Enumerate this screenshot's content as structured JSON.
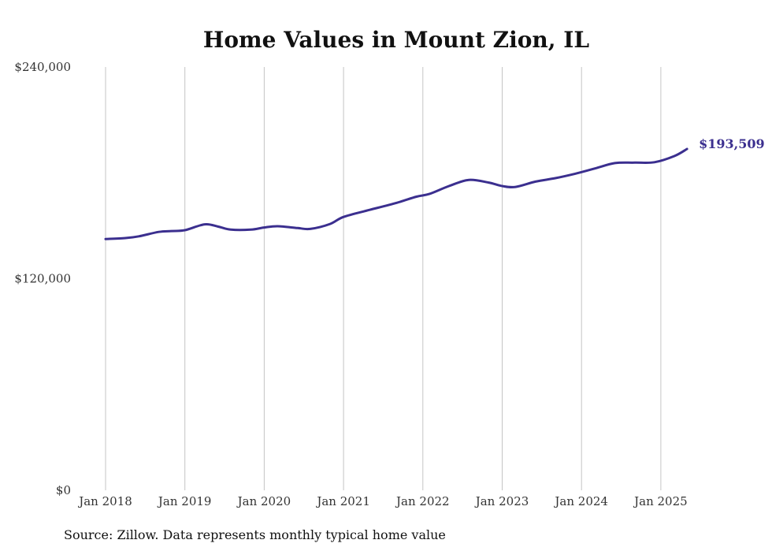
{
  "chart_data": {
    "type": "line",
    "title": "Home Values in Mount Zion, IL",
    "xlabel": "",
    "ylabel": "",
    "ylim": [
      0,
      240000
    ],
    "y_ticks": [
      {
        "value": 0,
        "label": "$0"
      },
      {
        "value": 120000,
        "label": "$120,000"
      },
      {
        "value": 240000,
        "label": "$240,000"
      }
    ],
    "x_ticks": [
      {
        "value": 2018.0,
        "label": "Jan 2018"
      },
      {
        "value": 2019.0,
        "label": "Jan 2019"
      },
      {
        "value": 2020.0,
        "label": "Jan 2020"
      },
      {
        "value": 2021.0,
        "label": "Jan 2021"
      },
      {
        "value": 2022.0,
        "label": "Jan 2022"
      },
      {
        "value": 2023.0,
        "label": "Jan 2023"
      },
      {
        "value": 2024.0,
        "label": "Jan 2024"
      },
      {
        "value": 2025.0,
        "label": "Jan 2025"
      }
    ],
    "xlim": [
      2018.0,
      2025.33
    ],
    "grid": "vertical",
    "line_color": "#3b2f8f",
    "end_label": "$193,509",
    "series": [
      {
        "points": [
          [
            2018.0,
            142500
          ],
          [
            2018.25,
            143000
          ],
          [
            2018.42,
            144000
          ],
          [
            2018.67,
            146500
          ],
          [
            2018.83,
            147000
          ],
          [
            2019.0,
            147500
          ],
          [
            2019.25,
            150800
          ],
          [
            2019.42,
            149500
          ],
          [
            2019.58,
            147800
          ],
          [
            2019.83,
            147800
          ],
          [
            2020.0,
            149000
          ],
          [
            2020.17,
            149700
          ],
          [
            2020.42,
            148700
          ],
          [
            2020.58,
            148200
          ],
          [
            2020.83,
            151000
          ],
          [
            2021.0,
            155000
          ],
          [
            2021.33,
            159000
          ],
          [
            2021.67,
            163000
          ],
          [
            2021.92,
            166500
          ],
          [
            2022.08,
            168000
          ],
          [
            2022.33,
            172500
          ],
          [
            2022.58,
            176000
          ],
          [
            2022.83,
            174500
          ],
          [
            2023.0,
            172500
          ],
          [
            2023.17,
            172000
          ],
          [
            2023.42,
            175000
          ],
          [
            2023.67,
            177000
          ],
          [
            2023.92,
            179500
          ],
          [
            2024.17,
            182500
          ],
          [
            2024.42,
            185500
          ],
          [
            2024.67,
            185800
          ],
          [
            2024.92,
            186000
          ],
          [
            2025.17,
            189500
          ],
          [
            2025.33,
            193509
          ]
        ]
      }
    ]
  },
  "footer": {
    "source": "Source: Zillow. Data represents monthly typical home value"
  }
}
